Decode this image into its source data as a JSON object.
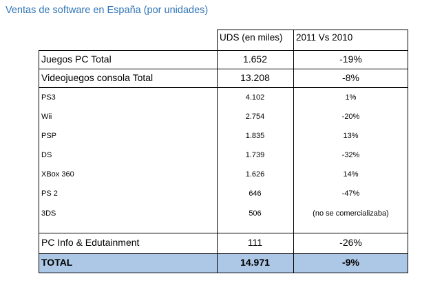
{
  "title": "Ventas de software en España (por unidades)",
  "table": {
    "headers": {
      "units": "UDS (en miles)",
      "change": "2011 Vs 2010"
    },
    "rows": [
      {
        "label": "Juegos PC Total",
        "units": "1.652",
        "change": "-19%"
      },
      {
        "label": "Videojuegos consola Total",
        "units": "13.208",
        "change": "-8%"
      },
      {
        "label": "PS3",
        "units": "4.102",
        "change": "1%"
      },
      {
        "label": "Wii",
        "units": "2.754",
        "change": "-20%"
      },
      {
        "label": "PSP",
        "units": "1.835",
        "change": "13%"
      },
      {
        "label": "DS",
        "units": "1.739",
        "change": "-32%"
      },
      {
        "label": "XBox 360",
        "units": "1.626",
        "change": "14%"
      },
      {
        "label": "PS 2",
        "units": "646",
        "change": "-47%"
      },
      {
        "label": "3DS",
        "units": "506",
        "change": "(no se comercializaba)"
      },
      {
        "label": "PC Info & Edutainment",
        "units": "111",
        "change": "-26%"
      },
      {
        "label": "TOTAL",
        "units": "14.971",
        "change": "-9%"
      }
    ]
  },
  "colors": {
    "title": "#2e74b5",
    "total_row": "#adc8e6"
  }
}
